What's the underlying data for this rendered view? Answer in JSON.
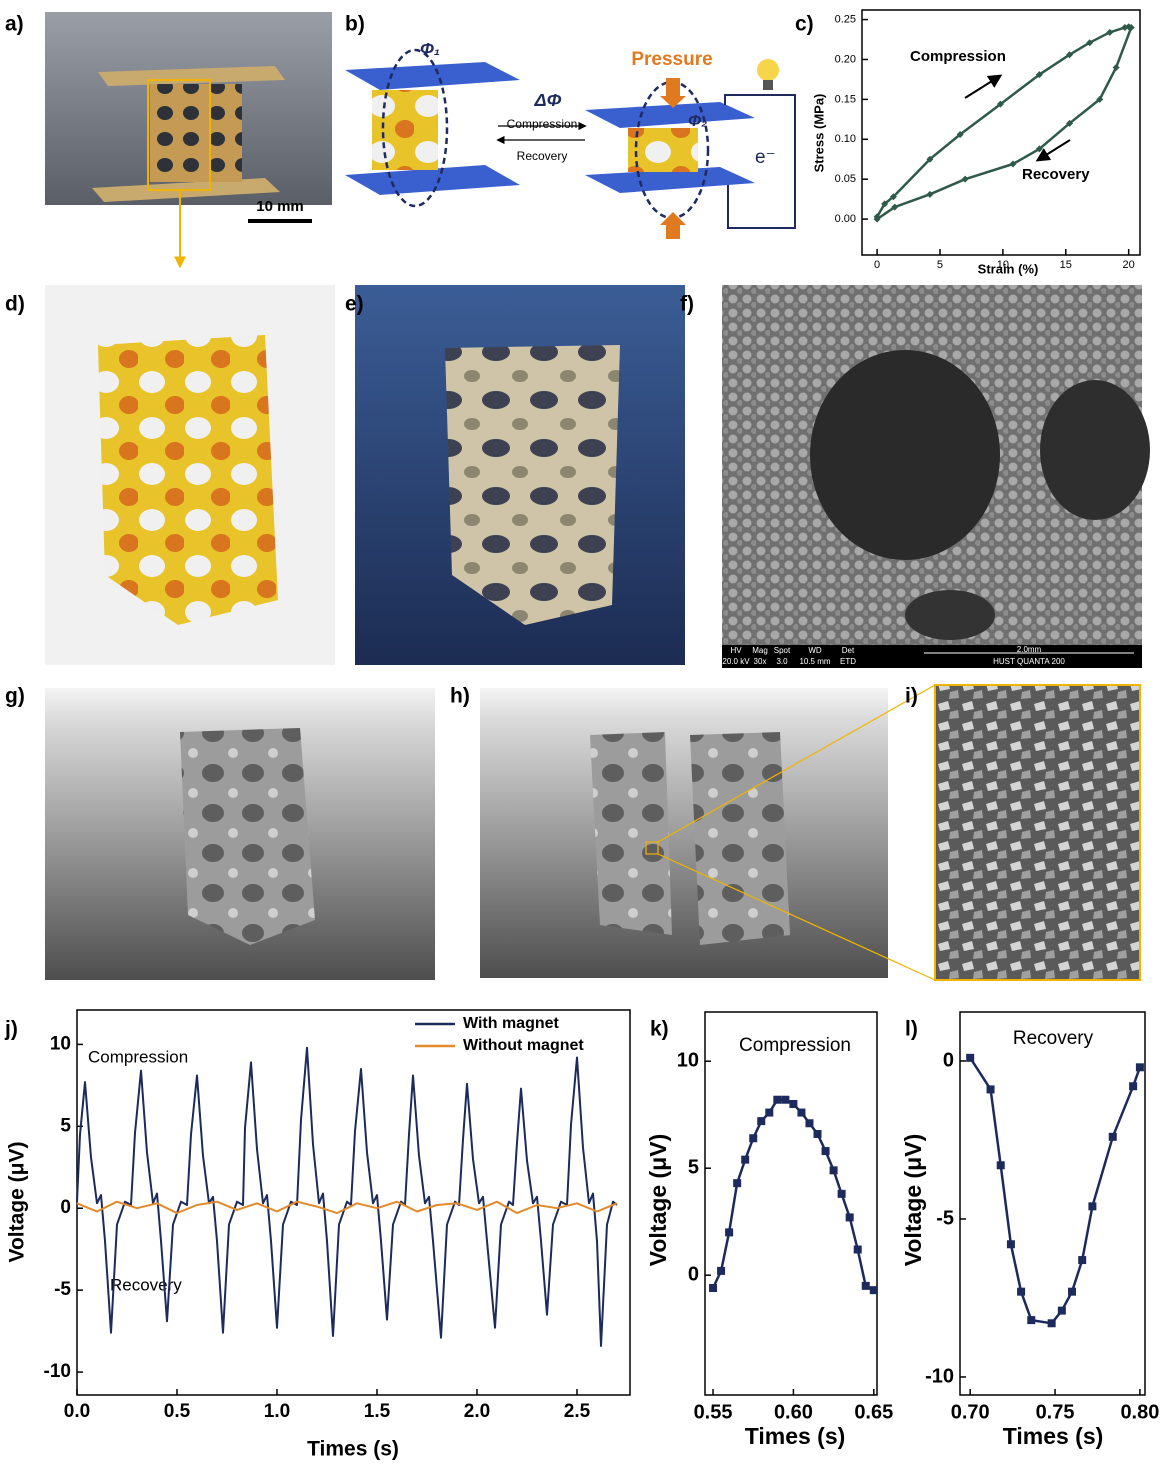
{
  "figure": {
    "panel_labels": [
      "a)",
      "b)",
      "c)",
      "d)",
      "e)",
      "f)",
      "g)",
      "h)",
      "i)",
      "j)",
      "k)",
      "l)"
    ],
    "a": {
      "scale_bar": "10 mm"
    },
    "b": {
      "flux_1": "Φ₁",
      "flux_2": "Φ₂",
      "flux_change": "ΔΦ",
      "forward": "Compression",
      "backward": "Recovery",
      "pressure": "Pressure",
      "electron": "e⁻"
    },
    "f": {
      "info_headers": [
        "HV",
        "Mag",
        "Spot",
        "WD",
        "Det"
      ],
      "info_values": [
        "20.0 kV",
        "30x",
        "3.0",
        "10.5 mm",
        "ETD"
      ],
      "scale_bar": "2.0mm",
      "instrument": "HUST  QUANTA 200"
    }
  },
  "chart_data": [
    {
      "type": "line",
      "x_label": "Strain (%)",
      "y_label": "Stress (MPa)",
      "annotations": [
        "Compression",
        "Recovery"
      ],
      "color": "#2f5a49",
      "markers": "diamond",
      "x": [
        0,
        0.6,
        1.3,
        4.2,
        6.6,
        9.8,
        12.9,
        15.3,
        16.9,
        18.5,
        19.7,
        20,
        20.2,
        19,
        17.7,
        15.3,
        12.9,
        10.8,
        7,
        4.2,
        1.4,
        0
      ],
      "values": [
        0.003,
        0.019,
        0.028,
        0.075,
        0.106,
        0.144,
        0.181,
        0.206,
        0.221,
        0.234,
        0.24,
        0.241,
        0.24,
        0.19,
        0.15,
        0.12,
        0.088,
        0.069,
        0.05,
        0.031,
        0.015,
        0
      ],
      "xlim": [
        -1.2,
        20.9
      ],
      "xticks": [
        0,
        5,
        10,
        15,
        20
      ],
      "ylim": [
        -0.045,
        0.262
      ],
      "yticks": [
        {
          "value": 0,
          "label": "0.00"
        },
        {
          "value": 0.05,
          "label": "0.05"
        },
        {
          "value": 0.1,
          "label": "0.10"
        },
        {
          "value": 0.15,
          "label": "0.15"
        },
        {
          "value": 0.2,
          "label": "0.20"
        },
        {
          "value": 0.25,
          "label": "0.25"
        }
      ]
    },
    {
      "type": "line",
      "x_label": "Times (s)",
      "y_label": "Voltage (μV)",
      "annotations": [
        "Compression",
        "Recovery"
      ],
      "legend": "upper right",
      "series": [
        {
          "name": "With magnet",
          "color": "#1c2a5c",
          "x": [
            0,
            0.015,
            0.04,
            0.07,
            0.1,
            0.12,
            0.14,
            0.17,
            0.2,
            0.24,
            0.27,
            0.29,
            0.32,
            0.35,
            0.38,
            0.4,
            0.42,
            0.45,
            0.48,
            0.52,
            0.55,
            0.57,
            0.6,
            0.63,
            0.66,
            0.68,
            0.7,
            0.73,
            0.76,
            0.8,
            0.83,
            0.84,
            0.87,
            0.9,
            0.93,
            0.95,
            0.97,
            1.0,
            1.03,
            1.07,
            1.1,
            1.12,
            1.15,
            1.18,
            1.21,
            1.23,
            1.25,
            1.28,
            1.31,
            1.35,
            1.37,
            1.39,
            1.42,
            1.45,
            1.48,
            1.5,
            1.52,
            1.55,
            1.58,
            1.62,
            1.64,
            1.66,
            1.68,
            1.71,
            1.74,
            1.76,
            1.78,
            1.82,
            1.85,
            1.89,
            1.91,
            1.93,
            1.95,
            1.98,
            2.01,
            2.03,
            2.05,
            2.09,
            2.12,
            2.16,
            2.18,
            2.2,
            2.22,
            2.25,
            2.28,
            2.3,
            2.32,
            2.35,
            2.38,
            2.42,
            2.45,
            2.47,
            2.5,
            2.53,
            2.56,
            2.58,
            2.6,
            2.62,
            2.65,
            2.68,
            2.7
          ],
          "values": [
            0.4,
            4.5,
            7.7,
            3.1,
            0.3,
            0.8,
            -2,
            -7.6,
            -1,
            0.4,
            0.2,
            4.6,
            8.4,
            3.4,
            0.3,
            0.9,
            -2,
            -6.9,
            -1,
            0.4,
            0.2,
            4.5,
            8.1,
            3.2,
            0.3,
            0.7,
            -2,
            -7.6,
            -1,
            0.4,
            0.2,
            4.9,
            8.9,
            3.6,
            0.3,
            0.8,
            -2,
            -7.3,
            -1,
            0.4,
            0.2,
            5.4,
            9.8,
            3.9,
            0.3,
            0.9,
            -2,
            -7.8,
            -1,
            0.4,
            0.2,
            4.7,
            8.5,
            3.4,
            0.3,
            0.8,
            -2,
            -6.8,
            -1,
            0.4,
            0.2,
            4.5,
            8.1,
            3.2,
            0.3,
            0.7,
            -2,
            -7.9,
            -1,
            0.4,
            0.2,
            4.2,
            7.6,
            3,
            0.3,
            0.7,
            -2,
            -7.3,
            -1,
            0.4,
            0.2,
            4,
            7.3,
            2.9,
            0.3,
            0.7,
            -2,
            -6.5,
            -1,
            0.4,
            0.2,
            5.1,
            9.2,
            3.7,
            0.3,
            0.9,
            -2,
            -8.4,
            -1,
            0.4,
            0.2
          ]
        },
        {
          "name": "Without magnet",
          "color": "#e08a2c",
          "x": [
            0,
            0.1,
            0.2,
            0.3,
            0.4,
            0.5,
            0.6,
            0.7,
            0.8,
            0.9,
            1.0,
            1.1,
            1.2,
            1.3,
            1.4,
            1.5,
            1.6,
            1.7,
            1.8,
            1.9,
            2.0,
            2.1,
            2.2,
            2.3,
            2.4,
            2.5,
            2.6,
            2.7
          ],
          "values": [
            0.3,
            -0.2,
            0.4,
            0.0,
            0.3,
            -0.3,
            0.2,
            0.4,
            -0.1,
            0.3,
            -0.2,
            0.4,
            0.1,
            -0.3,
            0.3,
            0.0,
            0.4,
            -0.2,
            0.2,
            0.3,
            -0.1,
            0.4,
            -0.3,
            0.2,
            0.0,
            0.3,
            -0.2,
            0.3
          ]
        }
      ],
      "xlim": [
        0,
        2.765
      ],
      "xticks": [
        {
          "value": 0,
          "label": "0.0"
        },
        0.5,
        {
          "value": 1,
          "label": "1.0"
        },
        1.5,
        {
          "value": 2,
          "label": "2.0"
        },
        2.5
      ],
      "ylim": [
        -11.4,
        12.1
      ],
      "yticks": [
        -10,
        -5,
        0,
        5,
        10
      ]
    },
    {
      "type": "line",
      "x_label": "Times (s)",
      "y_label": "Voltage (μV)",
      "annotations": [
        "Compression"
      ],
      "color": "#1c2a5c",
      "markers": "square",
      "x": [
        0.55,
        0.555,
        0.56,
        0.565,
        0.57,
        0.575,
        0.58,
        0.585,
        0.59,
        0.595,
        0.6,
        0.605,
        0.61,
        0.615,
        0.62,
        0.625,
        0.63,
        0.635,
        0.64,
        0.645,
        0.65
      ],
      "values": [
        -0.6,
        0.2,
        2.0,
        4.3,
        5.4,
        6.4,
        7.2,
        7.6,
        8.2,
        8.2,
        8.0,
        7.6,
        7.1,
        6.6,
        5.8,
        4.9,
        3.8,
        2.7,
        1.2,
        -0.5,
        -0.7
      ],
      "xlim": [
        0.545,
        0.652
      ],
      "xticks": [
        0.55,
        {
          "value": 0.6,
          "label": "0.60"
        },
        0.65
      ],
      "ylim": [
        -5.6,
        12.3
      ],
      "yticks": [
        0,
        5,
        10
      ]
    },
    {
      "type": "line",
      "x_label": "Times (s)",
      "y_label": "Voltage (μV)",
      "annotations": [
        "Recovery"
      ],
      "color": "#1c2a5c",
      "markers": "square",
      "x": [
        0.7,
        0.712,
        0.718,
        0.724,
        0.73,
        0.736,
        0.748,
        0.754,
        0.76,
        0.766,
        0.772,
        0.784,
        0.796,
        0.8
      ],
      "values": [
        0.1,
        -0.9,
        -3.3,
        -5.8,
        -7.3,
        -8.2,
        -8.3,
        -7.9,
        -7.3,
        -6.3,
        -4.6,
        -2.4,
        -0.8,
        -0.2
      ],
      "xlim": [
        0.694,
        0.803
      ],
      "xticks": [
        {
          "value": 0.7,
          "label": "0.70"
        },
        {
          "value": 0.75,
          "label": "0.75"
        },
        {
          "value": 0.8,
          "label": "0.80"
        }
      ],
      "ylim": [
        -10.57,
        1.55
      ],
      "yticks": [
        -10,
        -5,
        0
      ]
    }
  ]
}
